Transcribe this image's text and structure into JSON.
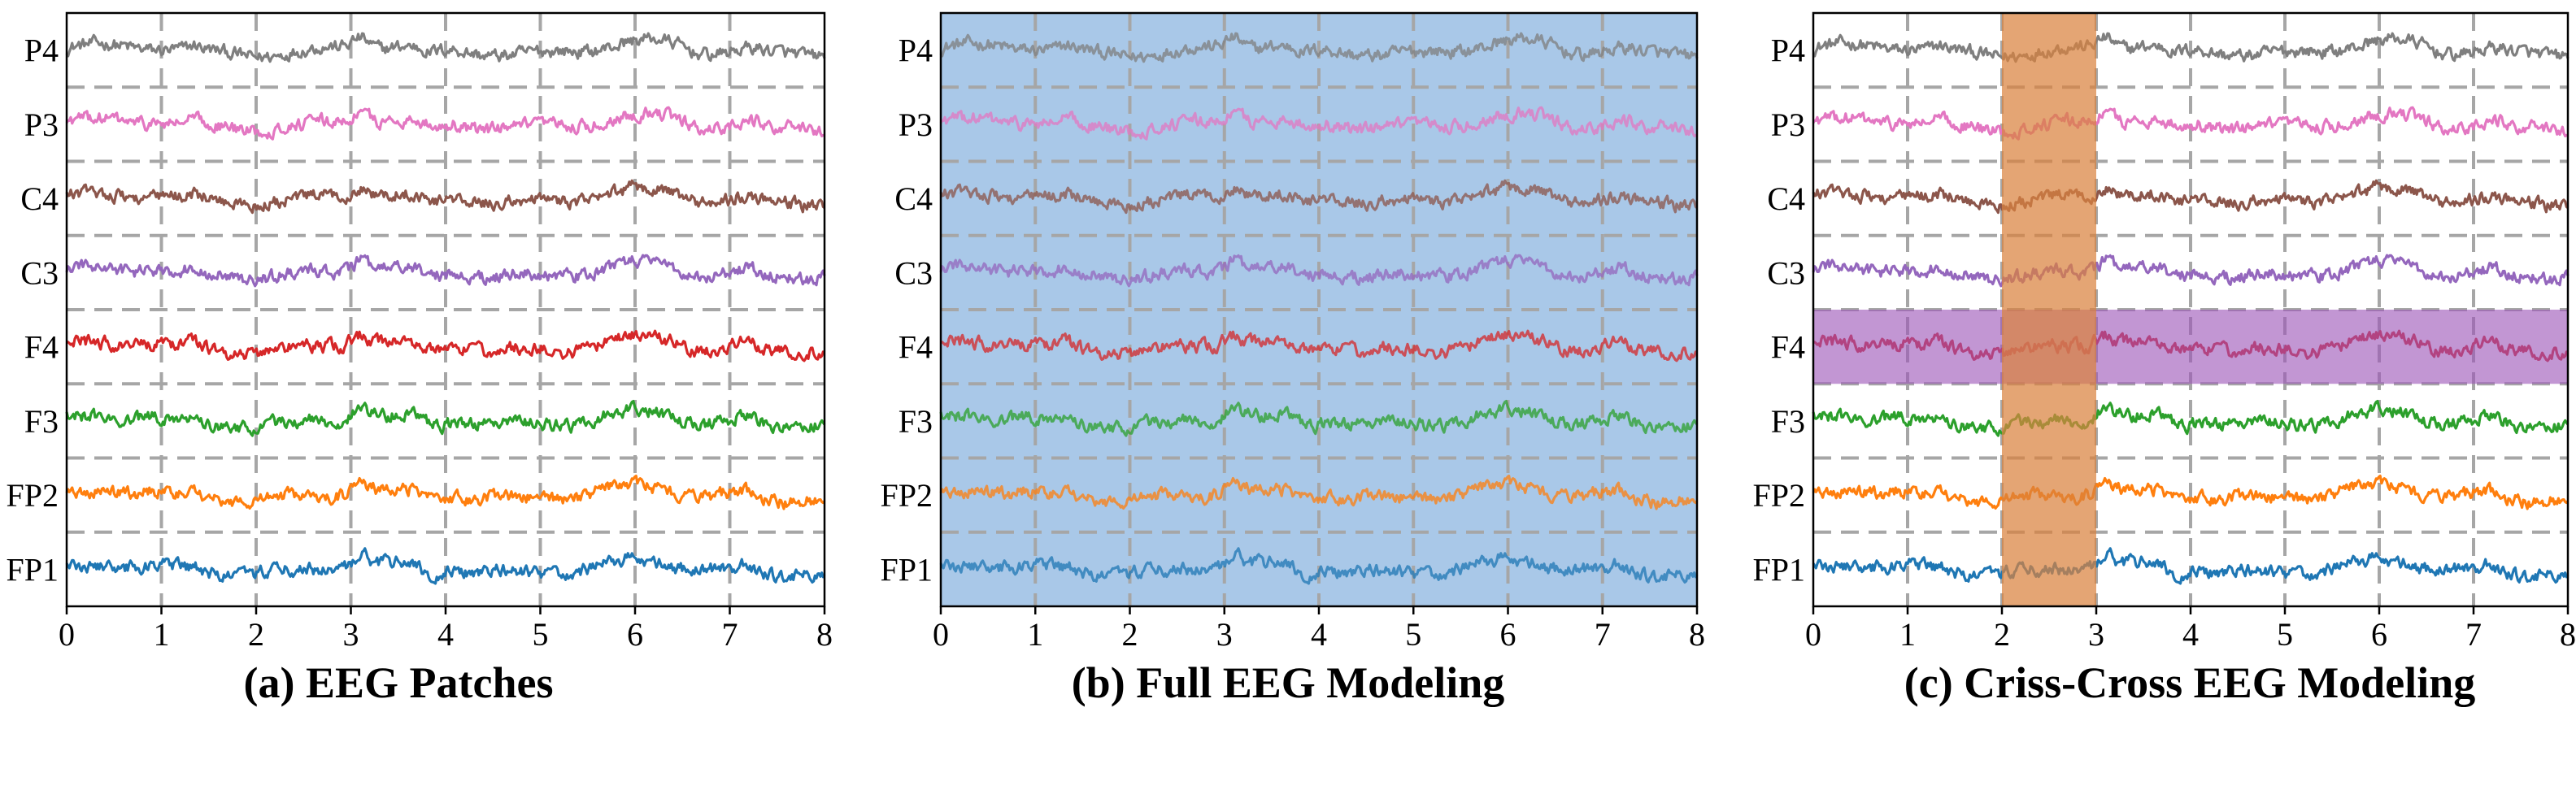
{
  "chart_data": [
    {
      "type": "line",
      "title": "(a) EEG Patches",
      "channels": [
        "P4",
        "P3",
        "C4",
        "C3",
        "F4",
        "F3",
        "FP2",
        "FP1"
      ],
      "x_ticks": [
        "0",
        "1",
        "2",
        "3",
        "4",
        "5",
        "6",
        "7",
        "8"
      ],
      "xlim": [
        0,
        8
      ],
      "grid": "dashed",
      "highlight": null
    },
    {
      "type": "line",
      "title": "(b) Full EEG Modeling",
      "channels": [
        "P4",
        "P3",
        "C4",
        "C3",
        "F4",
        "F3",
        "FP2",
        "FP1"
      ],
      "x_ticks": [
        "0",
        "1",
        "2",
        "3",
        "4",
        "5",
        "6",
        "7",
        "8"
      ],
      "xlim": [
        0,
        8
      ],
      "grid": "dashed",
      "highlight": {
        "type": "full",
        "color": "#a9c8e8"
      }
    },
    {
      "type": "line",
      "title": "(c) Criss-Cross EEG Modeling",
      "channels": [
        "P4",
        "P3",
        "C4",
        "C3",
        "F4",
        "F3",
        "FP2",
        "FP1"
      ],
      "x_ticks": [
        "0",
        "1",
        "2",
        "3",
        "4",
        "5",
        "6",
        "7",
        "8"
      ],
      "xlim": [
        0,
        8
      ],
      "grid": "dashed",
      "highlight": {
        "type": "criss-cross",
        "column": [
          2,
          3
        ],
        "row": "F4",
        "column_color": "#d9823f",
        "row_color": "#9c55b8"
      }
    }
  ],
  "colors": {
    "P4": "#7f7f7f",
    "P3": "#e377c2",
    "C4": "#8c564b",
    "C3": "#9467bd",
    "F4": "#d62728",
    "F3": "#2ca02c",
    "FP2": "#ff7f0e",
    "FP1": "#1f77b4"
  }
}
